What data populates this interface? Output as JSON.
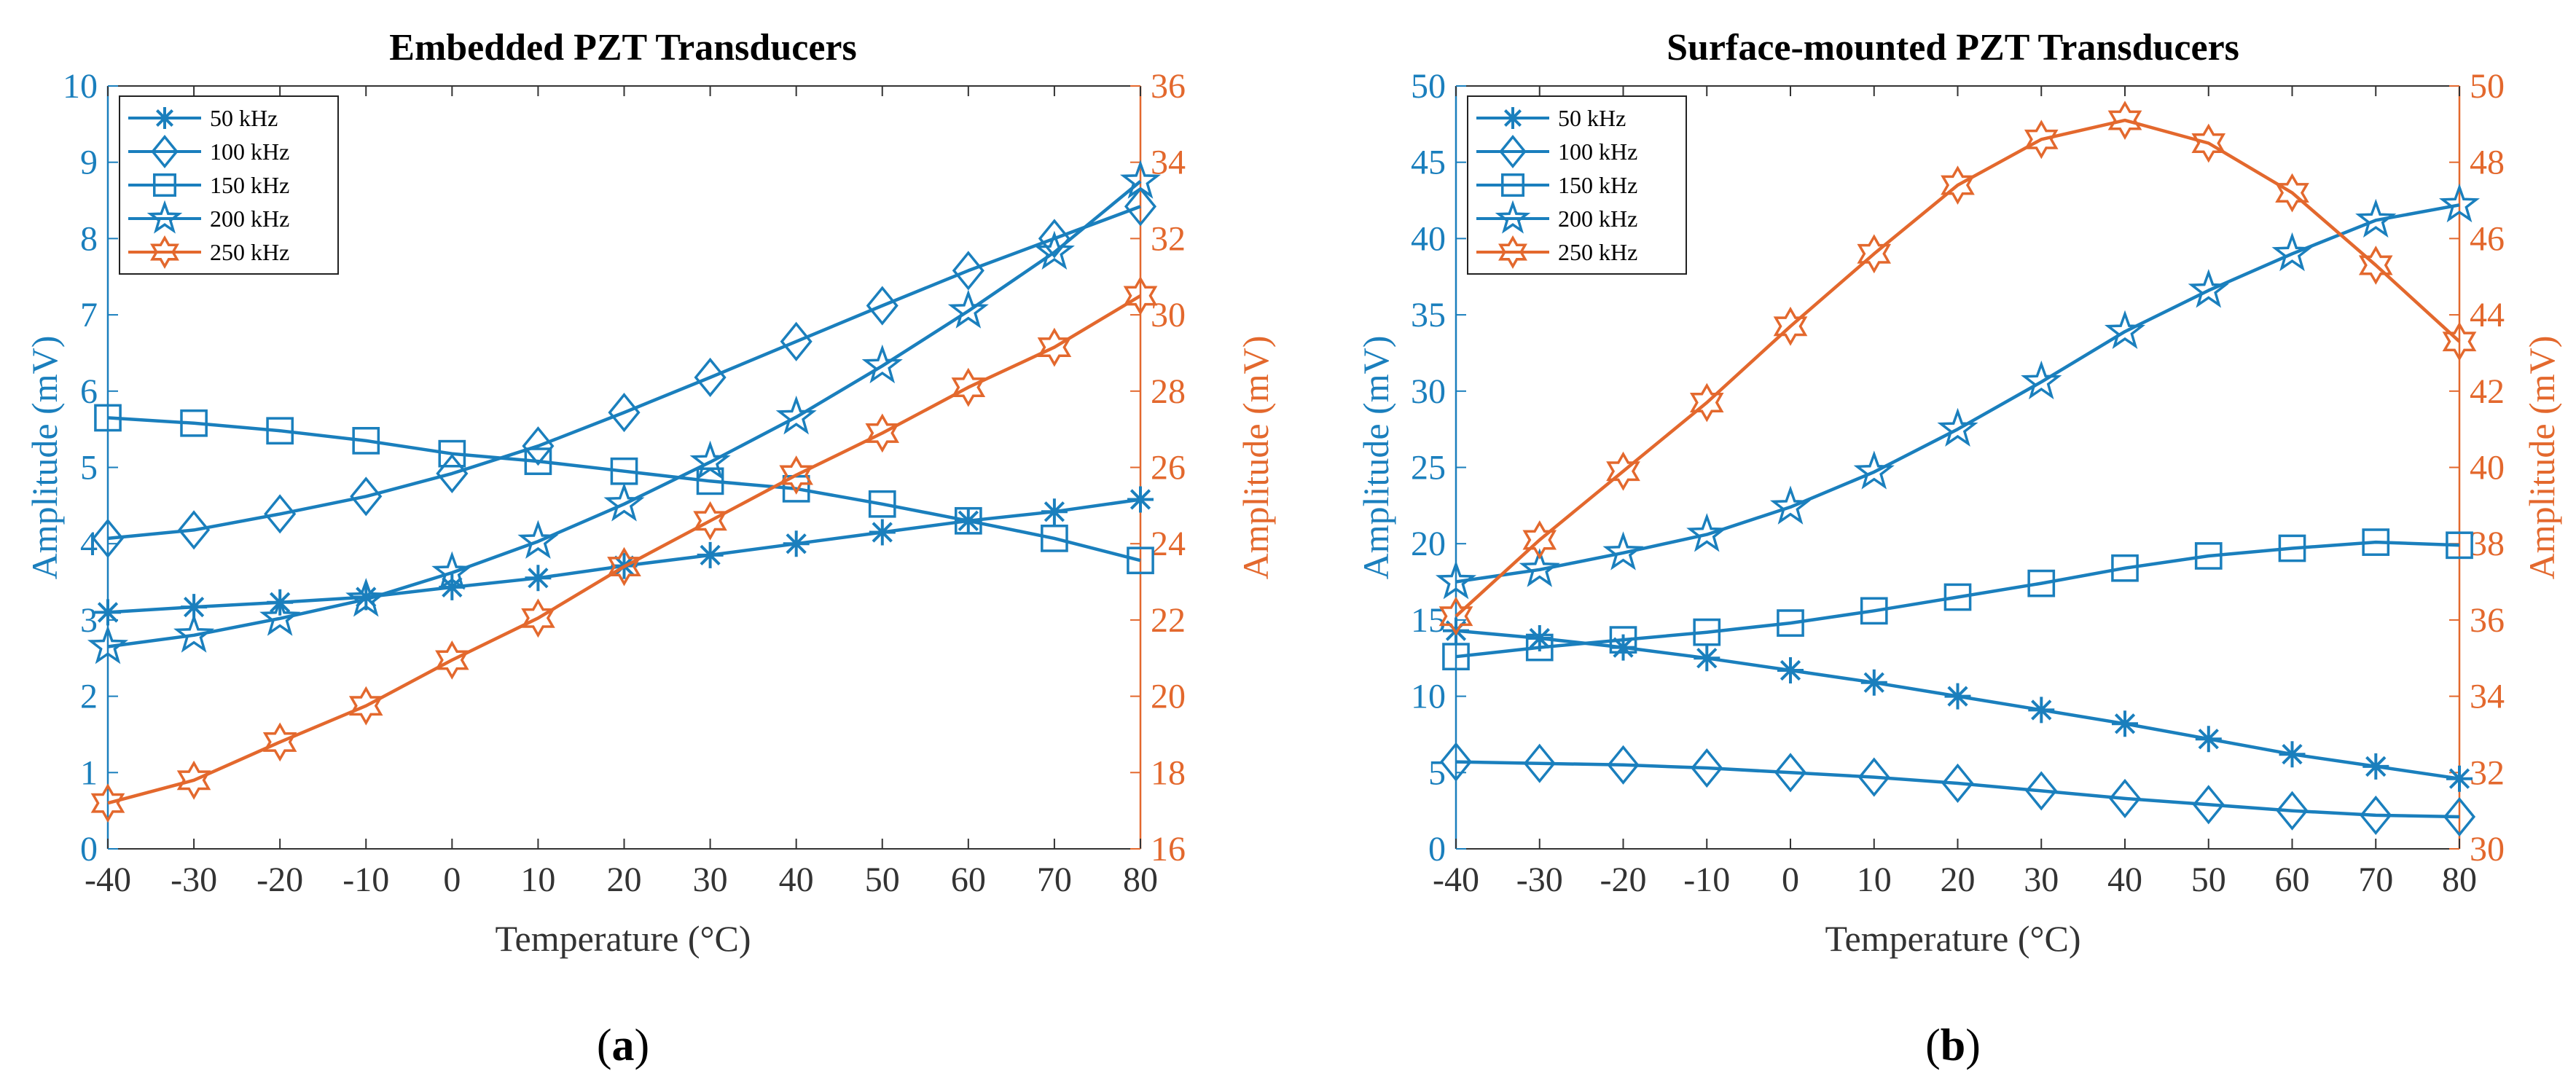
{
  "colors": {
    "left_axis": "#1a7fbd",
    "right_axis": "#e3682d",
    "series_blue": "#1a7fbd",
    "series_orange": "#e3682d",
    "x_axis": "#333333"
  },
  "captions": [
    {
      "open": "(",
      "letter": "a",
      "close": ")"
    },
    {
      "open": "(",
      "letter": "b",
      "close": ")"
    }
  ],
  "chart_data": [
    {
      "type": "line",
      "title": "Embedded PZT Transducers",
      "xlabel": "Temperature (°C)",
      "ylabel_left": "Amplitude (mV)",
      "ylabel_right": "Amplitude (mV)",
      "x": [
        -40,
        -30,
        -20,
        -10,
        0,
        10,
        20,
        30,
        40,
        50,
        60,
        70,
        80
      ],
      "xlim": [
        -40,
        80
      ],
      "ylim_left": [
        0,
        10
      ],
      "ylim_right": [
        16,
        36
      ],
      "yticks_left": [
        0,
        1,
        2,
        3,
        4,
        5,
        6,
        7,
        8,
        9,
        10
      ],
      "yticks_right": [
        16,
        18,
        20,
        22,
        24,
        26,
        28,
        30,
        32,
        34,
        36
      ],
      "legend_position": "top-left",
      "series": [
        {
          "name": "50 kHz",
          "axis": "left",
          "marker": "asterisk",
          "values": [
            3.1,
            3.17,
            3.23,
            3.3,
            3.43,
            3.55,
            3.71,
            3.85,
            4.0,
            4.15,
            4.3,
            4.42,
            4.58
          ]
        },
        {
          "name": "100 kHz",
          "axis": "left",
          "marker": "diamond",
          "values": [
            4.07,
            4.18,
            4.39,
            4.62,
            4.92,
            5.28,
            5.72,
            6.18,
            6.65,
            7.12,
            7.58,
            8.0,
            8.42
          ]
        },
        {
          "name": "150 kHz",
          "axis": "left",
          "marker": "square",
          "values": [
            5.65,
            5.58,
            5.48,
            5.35,
            5.18,
            5.08,
            4.95,
            4.82,
            4.72,
            4.52,
            4.3,
            4.07,
            3.78
          ]
        },
        {
          "name": "200 kHz",
          "axis": "left",
          "marker": "star",
          "values": [
            2.65,
            2.8,
            3.02,
            3.27,
            3.62,
            4.03,
            4.52,
            5.07,
            5.66,
            6.33,
            7.05,
            7.82,
            8.75
          ]
        },
        {
          "name": "250 kHz",
          "axis": "right",
          "marker": "hexagram",
          "values": [
            17.2,
            17.8,
            18.8,
            19.75,
            20.95,
            22.05,
            23.4,
            24.6,
            25.8,
            26.9,
            28.1,
            29.15,
            30.5
          ]
        }
      ]
    },
    {
      "type": "line",
      "title": "Surface-mounted PZT Transducers",
      "xlabel": "Temperature (°C)",
      "ylabel_left": "Amplitude (mV)",
      "ylabel_right": "Amplitude (mV)",
      "x": [
        -40,
        -30,
        -20,
        -10,
        0,
        10,
        20,
        30,
        40,
        50,
        60,
        70,
        80
      ],
      "xlim": [
        -40,
        80
      ],
      "ylim_left": [
        0,
        50
      ],
      "ylim_right": [
        30,
        50
      ],
      "yticks_left": [
        0,
        5,
        10,
        15,
        20,
        25,
        30,
        35,
        40,
        45,
        50
      ],
      "yticks_right": [
        30,
        32,
        34,
        36,
        38,
        40,
        42,
        44,
        46,
        48,
        50
      ],
      "legend_position": "top-left",
      "series": [
        {
          "name": "50 kHz",
          "axis": "left",
          "marker": "asterisk",
          "values": [
            14.3,
            13.8,
            13.2,
            12.5,
            11.7,
            10.9,
            10.0,
            9.1,
            8.2,
            7.2,
            6.2,
            5.4,
            4.6
          ]
        },
        {
          "name": "100 kHz",
          "axis": "left",
          "marker": "diamond",
          "values": [
            5.7,
            5.6,
            5.5,
            5.3,
            5.0,
            4.7,
            4.3,
            3.8,
            3.3,
            2.9,
            2.5,
            2.2,
            2.1
          ]
        },
        {
          "name": "150 kHz",
          "axis": "left",
          "marker": "square",
          "values": [
            12.6,
            13.2,
            13.7,
            14.2,
            14.8,
            15.6,
            16.5,
            17.4,
            18.4,
            19.2,
            19.7,
            20.1,
            19.9
          ]
        },
        {
          "name": "200 kHz",
          "axis": "left",
          "marker": "star",
          "values": [
            17.5,
            18.3,
            19.4,
            20.6,
            22.4,
            24.7,
            27.5,
            30.6,
            33.9,
            36.6,
            39.0,
            41.2,
            42.2
          ]
        },
        {
          "name": "250 kHz",
          "axis": "right",
          "marker": "hexagram",
          "values": [
            36.1,
            38.1,
            39.9,
            41.7,
            43.7,
            45.6,
            47.4,
            48.6,
            49.1,
            48.5,
            47.2,
            45.3,
            43.3
          ]
        }
      ]
    }
  ]
}
